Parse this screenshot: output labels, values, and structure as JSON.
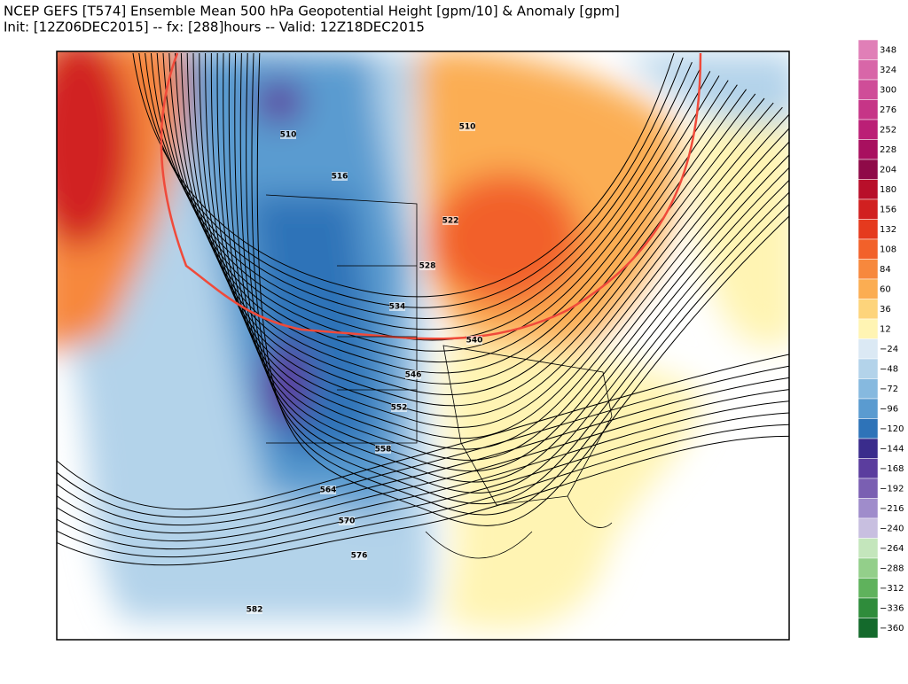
{
  "header": {
    "line1": "NCEP GEFS [T574] Ensemble Mean 500 hPa Geopotential Height [gpm/10] & Anomaly [gpm]",
    "line2": "Init: [12Z06DEC2015] -- fx: [288]hours -- Valid: 12Z18DEC2015"
  },
  "colorbar": {
    "levels": [
      {
        "label": "348",
        "color": "#e07fb7"
      },
      {
        "label": "324",
        "color": "#d866a8"
      },
      {
        "label": "300",
        "color": "#cf4d98"
      },
      {
        "label": "276",
        "color": "#c63587"
      },
      {
        "label": "252",
        "color": "#bb1f76"
      },
      {
        "label": "228",
        "color": "#a8105f"
      },
      {
        "label": "204",
        "color": "#8f0a48"
      },
      {
        "label": "180",
        "color": "#b80f2a"
      },
      {
        "label": "156",
        "color": "#d12020"
      },
      {
        "label": "132",
        "color": "#e53a1e"
      },
      {
        "label": "108",
        "color": "#f2612a"
      },
      {
        "label": "84",
        "color": "#f7883d"
      },
      {
        "label": "60",
        "color": "#fbad52"
      },
      {
        "label": "36",
        "color": "#fdd47b"
      },
      {
        "label": "12",
        "color": "#fff4b3"
      },
      {
        "label": "−24",
        "color": "#dbe9f4"
      },
      {
        "label": "−48",
        "color": "#b3d3ea"
      },
      {
        "label": "−72",
        "color": "#86b9df"
      },
      {
        "label": "−96",
        "color": "#5a9bd0"
      },
      {
        "label": "−120",
        "color": "#2e73b8"
      },
      {
        "label": "−144",
        "color": "#3a2c8c"
      },
      {
        "label": "−168",
        "color": "#5b3d9e"
      },
      {
        "label": "−192",
        "color": "#7a5fb2"
      },
      {
        "label": "−216",
        "color": "#9f8ccb"
      },
      {
        "label": "−240",
        "color": "#c8bfe0"
      },
      {
        "label": "−264",
        "color": "#c4e6bc"
      },
      {
        "label": "−288",
        "color": "#93cf8a"
      },
      {
        "label": "−312",
        "color": "#5fb25c"
      },
      {
        "label": "−336",
        "color": "#2f8c3b"
      },
      {
        "label": "−360",
        "color": "#146a2c"
      }
    ]
  },
  "contour_labels": [
    "510",
    "510",
    "516",
    "522",
    "528",
    "534",
    "540",
    "546",
    "552",
    "558",
    "564",
    "570",
    "576",
    "582"
  ]
}
